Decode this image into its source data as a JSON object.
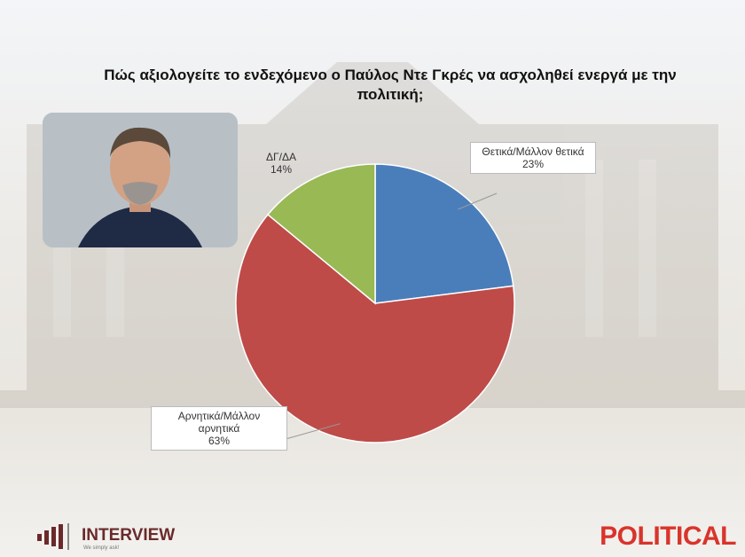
{
  "chart_data": {
    "type": "pie",
    "title": "Πώς αξιολογείτε το ενδεχόμενο ο Παύλος Ντε Γκρές να ασχοληθεί ενεργά με την πολιτική;",
    "categories": [
      "Θετικά/Μάλλον θετικά",
      "Αρνητικά/Μάλλον αρνητικά",
      "ΔΓ/ΔΑ"
    ],
    "values": [
      23,
      63,
      14
    ],
    "value_labels": [
      "23%",
      "63%",
      "14%"
    ],
    "colors": [
      "#4a7ebb",
      "#be4b48",
      "#98b954"
    ]
  },
  "branding": {
    "left": "INTERVIEW",
    "tagline": "We simply ask!",
    "right": "POLITICAL"
  }
}
